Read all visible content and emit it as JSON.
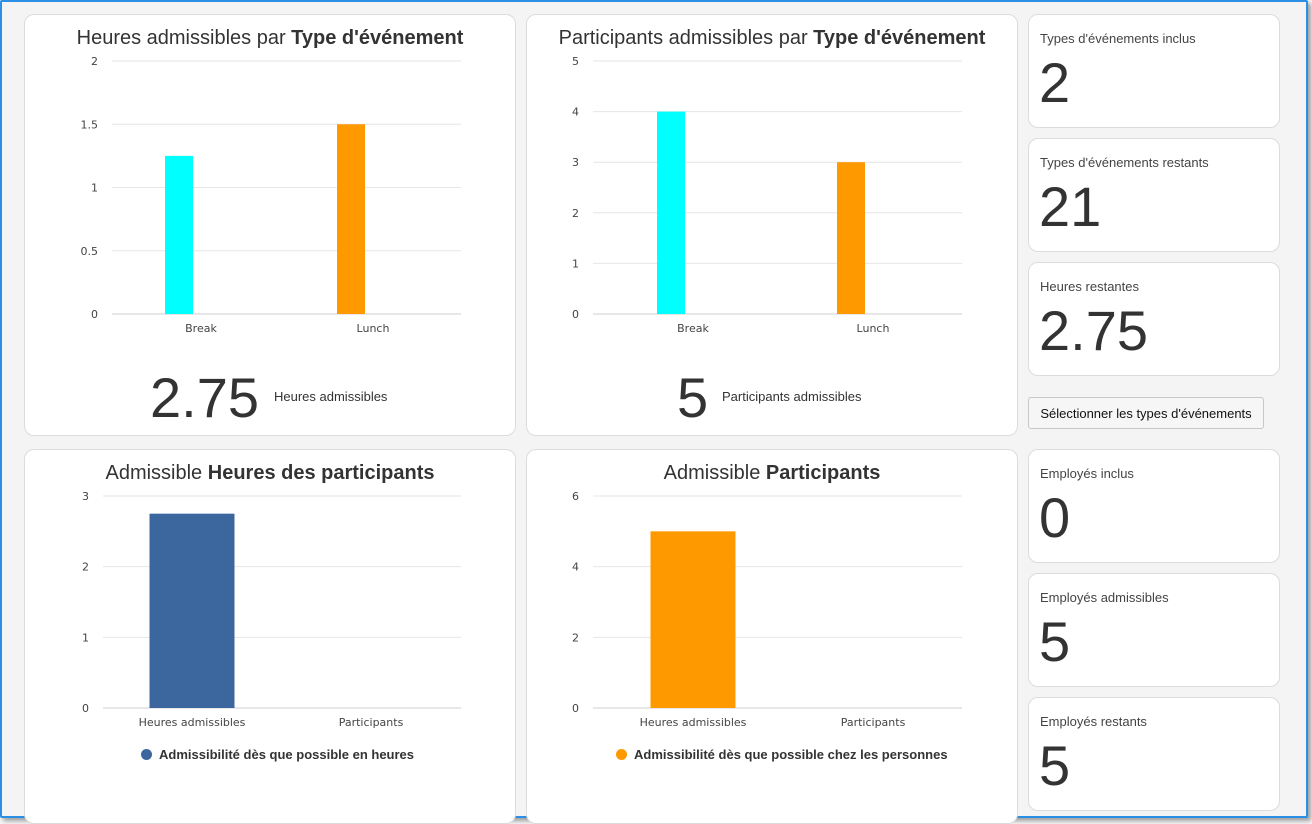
{
  "colors": {
    "cyan": "#00ffff",
    "orange": "#ff9900",
    "blue": "#3b679e"
  },
  "charts": {
    "c1": {
      "title_pre": "Heures admissibles par ",
      "title_bold": "Type d'événement",
      "stat_value": "2.75",
      "stat_label": "Heures admissibles"
    },
    "c2": {
      "title_pre": "Participants admissibles par ",
      "title_bold": "Type d'événement",
      "stat_value": "5",
      "stat_label": "Participants admissibles"
    },
    "c3": {
      "title_pre": "Admissible ",
      "title_bold": "Heures des participants",
      "legend": "Admissibilité dès que possible en heures"
    },
    "c4": {
      "title_pre": "Admissible ",
      "title_bold": "Participants",
      "legend": "Admissibilité dès que possible chez les personnes"
    }
  },
  "kpis": [
    {
      "label": "Types d'événements inclus",
      "value": "2"
    },
    {
      "label": "Types d'événements restants",
      "value": "21"
    },
    {
      "label": "Heures restantes",
      "value": "2.75"
    },
    {
      "label": "Employés inclus",
      "value": "0"
    },
    {
      "label": "Employés admissibles",
      "value": "5"
    },
    {
      "label": "Employés restants",
      "value": "5"
    }
  ],
  "select_button": "Sélectionner les types d'événements",
  "chart_data": [
    {
      "type": "bar",
      "categories": [
        "Break",
        "Lunch"
      ],
      "values": [
        1.25,
        1.5
      ],
      "ylim": [
        0,
        2
      ],
      "yticks": [
        "0",
        "0.5",
        "1",
        "1.5",
        "2"
      ],
      "colors": [
        "#00ffff",
        "#ff9900"
      ]
    },
    {
      "type": "bar",
      "categories": [
        "Break",
        "Lunch"
      ],
      "values": [
        4,
        3
      ],
      "ylim": [
        0,
        5
      ],
      "yticks": [
        "0",
        "1",
        "2",
        "3",
        "4",
        "5"
      ],
      "colors": [
        "#00ffff",
        "#ff9900"
      ]
    },
    {
      "type": "bar",
      "categories": [
        "Heures admissibles",
        "Participants"
      ],
      "values": [
        2.75,
        0
      ],
      "ylim": [
        0,
        3
      ],
      "yticks": [
        "0",
        "1",
        "2",
        "3"
      ],
      "colors": [
        "#3b679e",
        "#3b679e"
      ]
    },
    {
      "type": "bar",
      "categories": [
        "Heures admissibles",
        "Participants"
      ],
      "values": [
        5,
        0
      ],
      "ylim": [
        0,
        6
      ],
      "yticks": [
        "0",
        "2",
        "4",
        "6"
      ],
      "colors": [
        "#ff9900",
        "#ff9900"
      ]
    }
  ]
}
